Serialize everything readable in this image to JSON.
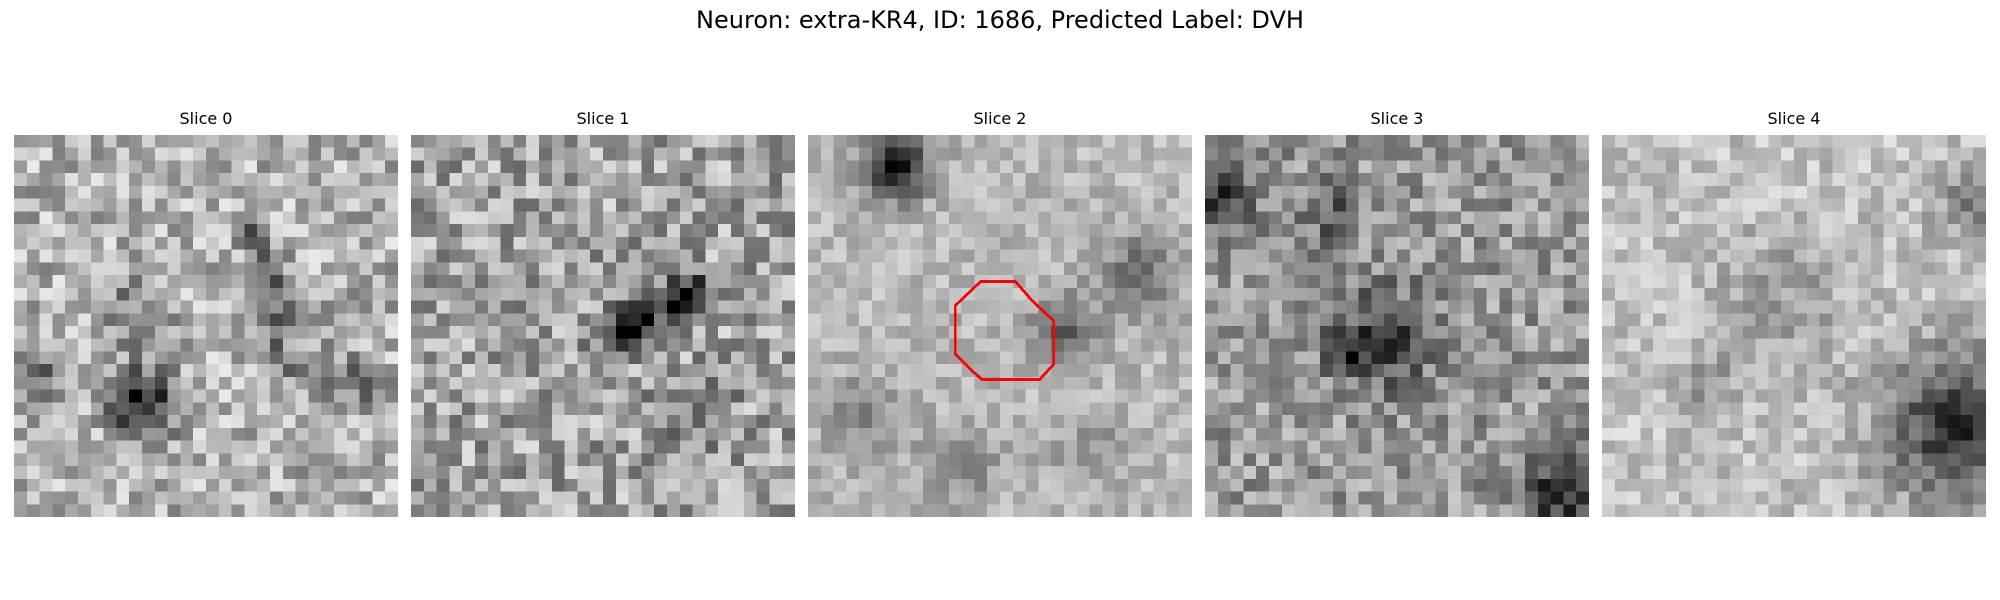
{
  "figure": {
    "title": "Neuron: extra-KR4, ID: 1686, Predicted Label: DVH"
  },
  "slices": [
    {
      "title": "Slice 0"
    },
    {
      "title": "Slice 1"
    },
    {
      "title": "Slice 2"
    },
    {
      "title": "Slice 3"
    },
    {
      "title": "Slice 4"
    }
  ],
  "roi": {
    "slice_index": 2,
    "color": "#ff0000",
    "shape": "octagon"
  },
  "colors": {
    "background": "#ffffff",
    "colormap": "grayscale"
  }
}
